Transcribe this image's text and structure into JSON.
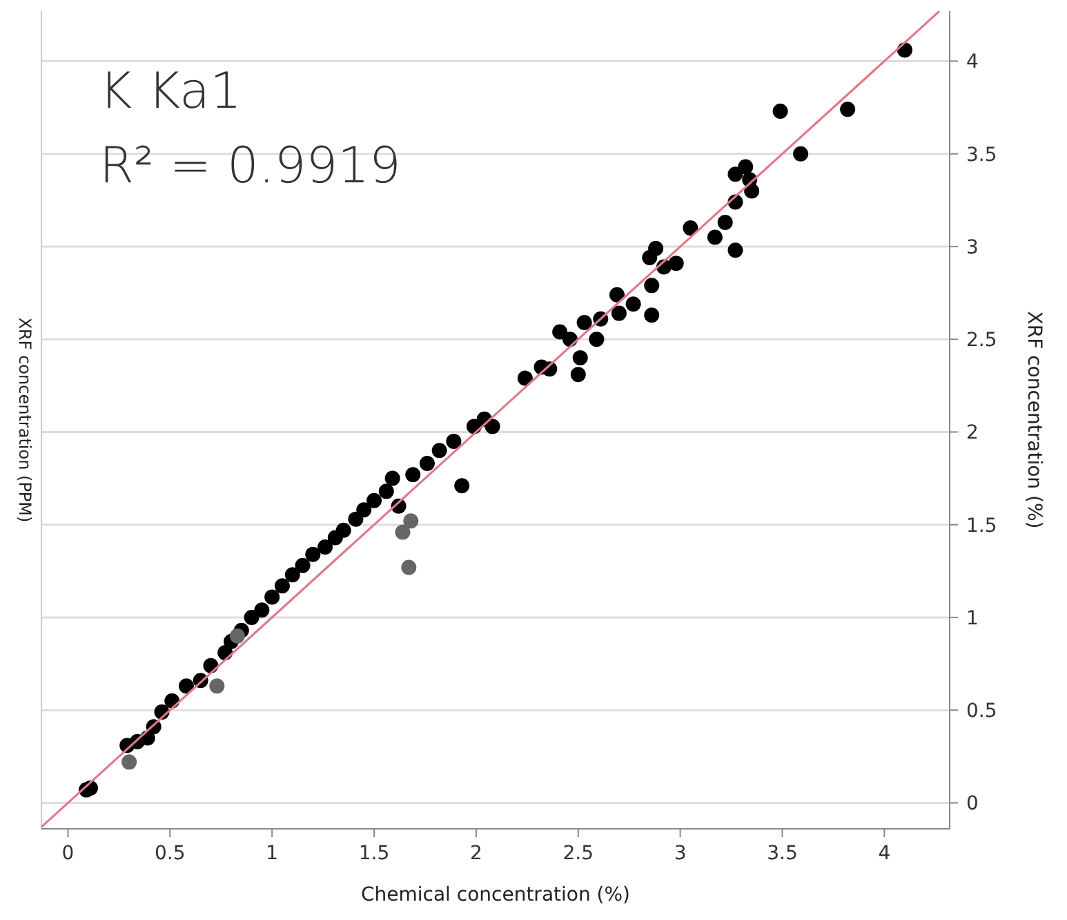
{
  "chart_data": {
    "type": "scatter",
    "xlabel": "Chemical concentration (%)",
    "ylabel": "XRF concentration (PPM)",
    "y2label": "XRF concentration (%)",
    "annotations": [
      "K Ka1",
      "R² = 0.9919"
    ],
    "xlim": [
      -0.13,
      4.32
    ],
    "xticks": [
      0,
      0.5,
      1,
      1.5,
      2,
      2.5,
      3,
      3.5,
      4
    ],
    "y2lim": [
      -0.14,
      4.27
    ],
    "y2ticks": [
      0,
      0.5,
      1,
      1.5,
      2,
      2.5,
      3,
      3.5,
      4
    ],
    "grid": "y",
    "marker": "circle",
    "series": [
      {
        "axis": "y2",
        "color": "#000000",
        "x": [
          0.09,
          0.11,
          0.29,
          0.34,
          0.39,
          0.42,
          0.46,
          0.51,
          0.58,
          0.65,
          0.7,
          0.77,
          0.8,
          0.85,
          0.9,
          0.95,
          1.0,
          1.05,
          1.1,
          1.15,
          1.2,
          1.26,
          1.31,
          1.35,
          1.41,
          1.45,
          1.5,
          1.56,
          1.59,
          1.62,
          1.69,
          1.76,
          1.82,
          1.89,
          1.93,
          1.99,
          2.04,
          2.08,
          2.24,
          2.32,
          2.36,
          2.5,
          2.51,
          2.41,
          2.46,
          2.53,
          2.59,
          2.61,
          2.69,
          2.7,
          2.77,
          2.86,
          2.86,
          2.85,
          2.88,
          2.92,
          2.98,
          3.05,
          3.17,
          3.22,
          3.27,
          3.27,
          3.27,
          3.32,
          3.35,
          3.34,
          3.49,
          3.59,
          3.82,
          4.1
        ],
        "values": [
          0.07,
          0.08,
          0.31,
          0.33,
          0.35,
          0.41,
          0.49,
          0.55,
          0.63,
          0.66,
          0.74,
          0.81,
          0.87,
          0.93,
          1.0,
          1.04,
          1.11,
          1.17,
          1.23,
          1.28,
          1.34,
          1.38,
          1.43,
          1.47,
          1.53,
          1.58,
          1.63,
          1.68,
          1.75,
          1.6,
          1.77,
          1.83,
          1.9,
          1.95,
          1.71,
          2.03,
          2.07,
          2.03,
          2.29,
          2.35,
          2.34,
          2.31,
          2.4,
          2.54,
          2.5,
          2.59,
          2.5,
          2.61,
          2.74,
          2.64,
          2.69,
          2.79,
          2.63,
          2.94,
          2.99,
          2.89,
          2.91,
          3.1,
          3.05,
          3.13,
          3.24,
          2.98,
          3.39,
          3.43,
          3.3,
          3.36,
          3.73,
          3.5,
          3.74,
          4.06
        ]
      },
      {
        "axis": "y2",
        "color": "#666666",
        "x": [
          0.3,
          0.73,
          0.83,
          1.64,
          1.67,
          1.68
        ],
        "values": [
          0.22,
          0.63,
          0.9,
          1.46,
          1.27,
          1.52
        ]
      },
      {
        "type": "line",
        "axis": "y2",
        "marker": "none",
        "color": "#e07a8a",
        "x": [
          -0.13,
          4.27
        ],
        "values": [
          -0.13,
          4.27
        ]
      }
    ]
  }
}
